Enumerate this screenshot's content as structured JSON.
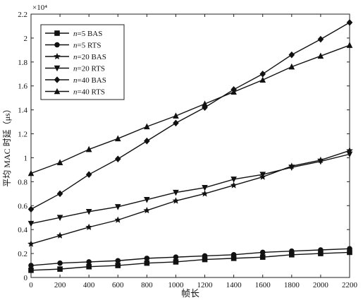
{
  "chart_data": {
    "type": "line",
    "xlabel": "帧长",
    "ylabel": "平均 MAC 时延（μs）",
    "y_multiplier": "×10⁴",
    "x": [
      0,
      200,
      400,
      600,
      800,
      1000,
      1200,
      1400,
      1600,
      1800,
      2000,
      2200
    ],
    "xlim": [
      0,
      2200
    ],
    "ylim": [
      0,
      2.2
    ],
    "x_ticks": [
      "0",
      "200",
      "400",
      "600",
      "800",
      "1000",
      "1200",
      "1400",
      "1600",
      "1800",
      "2000",
      "2200"
    ],
    "y_ticks": [
      "0",
      "0.2",
      "0.4",
      "0.6",
      "0.8",
      "1",
      "1.2",
      "1.4",
      "1.6",
      "1.8",
      "2",
      "2.2"
    ],
    "grid": false,
    "legend_position": "top-left",
    "series": [
      {
        "name": "n=5 BAS",
        "marker": "square",
        "values": [
          0.06,
          0.07,
          0.09,
          0.1,
          0.12,
          0.13,
          0.15,
          0.16,
          0.17,
          0.19,
          0.2,
          0.21
        ]
      },
      {
        "name": "n=5 RTS",
        "marker": "circle",
        "values": [
          0.1,
          0.12,
          0.13,
          0.14,
          0.16,
          0.17,
          0.18,
          0.19,
          0.21,
          0.22,
          0.23,
          0.24
        ]
      },
      {
        "name": "n=20 BAS",
        "marker": "star",
        "values": [
          0.28,
          0.35,
          0.42,
          0.48,
          0.56,
          0.64,
          0.7,
          0.77,
          0.84,
          0.93,
          0.98,
          1.06
        ]
      },
      {
        "name": "n=20 RTS",
        "marker": "triangle-down",
        "values": [
          0.45,
          0.5,
          0.55,
          0.59,
          0.65,
          0.71,
          0.75,
          0.82,
          0.86,
          0.92,
          0.97,
          1.03
        ]
      },
      {
        "name": "n=40 BAS",
        "marker": "diamond",
        "values": [
          0.57,
          0.7,
          0.86,
          0.99,
          1.14,
          1.29,
          1.42,
          1.57,
          1.7,
          1.86,
          1.99,
          2.13
        ]
      },
      {
        "name": "n=40 RTS",
        "marker": "triangle-up",
        "values": [
          0.87,
          0.96,
          1.07,
          1.16,
          1.26,
          1.35,
          1.45,
          1.55,
          1.65,
          1.76,
          1.85,
          1.94
        ]
      }
    ]
  }
}
